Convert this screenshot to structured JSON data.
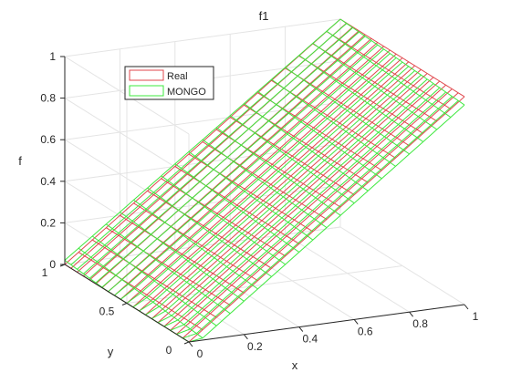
{
  "chart_data": {
    "type": "surface",
    "title": "f1",
    "xlabel": "x",
    "ylabel": "y",
    "zlabel": "f",
    "xlim": [
      0,
      1
    ],
    "ylim": [
      0,
      1
    ],
    "zlim": [
      0,
      1
    ],
    "xticks": [
      "0",
      "0.2",
      "0.4",
      "0.6",
      "0.8",
      "1"
    ],
    "yticks": [
      "0",
      "0.5",
      "1"
    ],
    "zticks": [
      "0",
      "0.2",
      "0.4",
      "0.6",
      "0.8",
      "1"
    ],
    "grid": true,
    "legend_position": "top-left",
    "series": [
      {
        "name": "Real",
        "color": "#e0474c",
        "function": "f = x",
        "grid_x": 21,
        "grid_y": 21
      },
      {
        "name": "MONGO",
        "color": "#3ee83e",
        "function": "f ≈ x (slight deviation)",
        "grid_x": 21,
        "grid_y": 21
      }
    ]
  }
}
